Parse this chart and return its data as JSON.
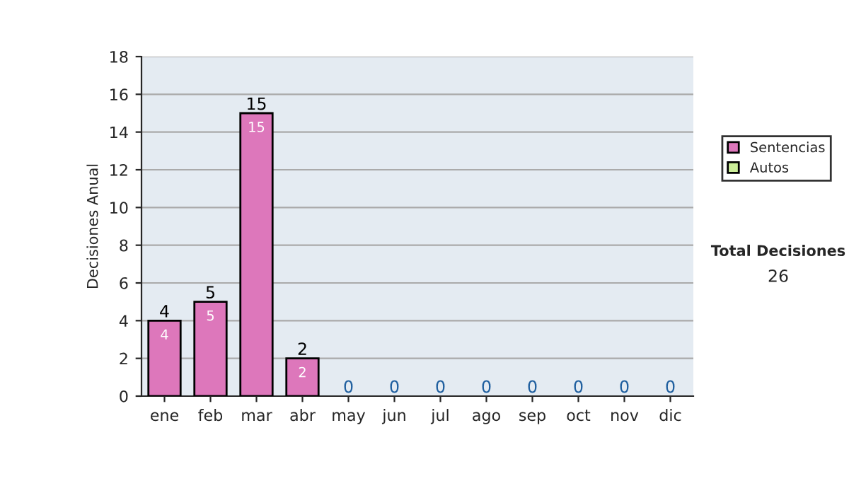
{
  "chart_data": {
    "type": "bar",
    "ylabel": "Decisiones Anual",
    "categories": [
      "ene",
      "feb",
      "mar",
      "abr",
      "may",
      "jun",
      "jul",
      "ago",
      "sep",
      "oct",
      "nov",
      "dic"
    ],
    "stacked": true,
    "series": [
      {
        "name": "Sentencias",
        "color": "#dd77bb",
        "values": [
          4,
          5,
          15,
          2,
          0,
          0,
          0,
          0,
          0,
          0,
          0,
          0
        ],
        "value_labels": [
          "4",
          "5",
          "15",
          "2",
          null,
          null,
          null,
          null,
          null,
          null,
          null,
          null
        ]
      },
      {
        "name": "Autos",
        "color": "#ccee99",
        "values": [
          0,
          0,
          0,
          0,
          0,
          0,
          0,
          0,
          0,
          0,
          0,
          0
        ]
      }
    ],
    "totals": [
      "4",
      "5",
      "15",
      "2",
      "0",
      "0",
      "0",
      "0",
      "0",
      "0",
      "0",
      "0"
    ],
    "ylim": [
      0,
      18
    ],
    "yticks": [
      0,
      2,
      4,
      6,
      8,
      10,
      12,
      14,
      16,
      18
    ],
    "grid": "y",
    "legend": "right",
    "annotations": [
      "Total Decisiones",
      "26"
    ]
  }
}
